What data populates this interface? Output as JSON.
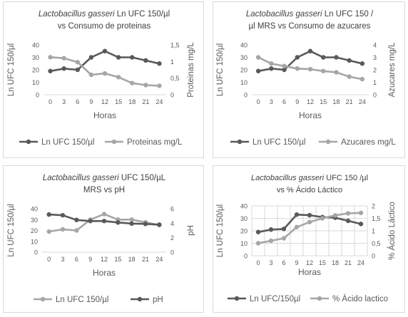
{
  "colors": {
    "dark_series": "#595959",
    "light_series": "#a6a6a6",
    "axis_text": "#595959",
    "title_text": "#404040",
    "grid": "#d9d9d9"
  },
  "chart_data": [
    {
      "type": "line",
      "title_italic": "Lactobacillus gasseri",
      "title_rest": " Ln UFC 150/µl",
      "title_line2": "vs Consumo de proteinas",
      "xlabel": "Horas",
      "ylabel_left": "Ln UFC 150/µl",
      "ylabel_right": "Proteinas mg/L",
      "x": [
        0,
        3,
        6,
        9,
        12,
        15,
        18,
        21,
        24
      ],
      "x_tick_labels": [
        "0",
        "3",
        "6",
        "9",
        "12",
        "15",
        "18",
        "21",
        "24"
      ],
      "y_left_ticks": [
        "0",
        "10",
        "20",
        "30",
        "40"
      ],
      "y_right_ticks": [
        "0",
        "0,5",
        "1",
        "1,5"
      ],
      "ylim_left": [
        0,
        40
      ],
      "ylim_right": [
        0,
        1.5
      ],
      "grid": false,
      "legend_position": "bottom",
      "series": [
        {
          "name": "Ln UFC 150/µl",
          "axis": "left",
          "color": "#595959",
          "values": [
            19,
            21,
            20,
            30,
            35,
            30,
            30,
            27.5,
            25
          ]
        },
        {
          "name": "Proteinas mg/L",
          "axis": "right",
          "color": "#a6a6a6",
          "values": [
            1.13,
            1.1,
            0.98,
            0.6,
            0.64,
            0.53,
            0.35,
            0.29,
            0.27
          ]
        }
      ]
    },
    {
      "type": "line",
      "title_italic": "Lactobacillus gasseri",
      "title_rest": " Ln UFC 150 /",
      "title_line2": "µl MRS vs Consumo de azucares",
      "xlabel": "Horas",
      "ylabel_left": "Ln UFC 150/µl",
      "ylabel_right": "Azucares mg/L",
      "x": [
        0,
        3,
        6,
        9,
        12,
        15,
        18,
        21,
        24
      ],
      "x_tick_labels": [
        "0",
        "3",
        "6",
        "9",
        "12",
        "15",
        "18",
        "21",
        "24"
      ],
      "y_left_ticks": [
        "0",
        "10",
        "20",
        "30",
        "40"
      ],
      "y_right_ticks": [
        "0",
        "1",
        "2",
        "3",
        "4"
      ],
      "ylim_left": [
        0,
        40
      ],
      "ylim_right": [
        0,
        4
      ],
      "grid": false,
      "legend_position": "bottom",
      "series": [
        {
          "name": "Ln UFC 150/µl",
          "axis": "left",
          "color": "#595959",
          "values": [
            19,
            21,
            20,
            30,
            35,
            30,
            30,
            27.5,
            25
          ]
        },
        {
          "name": "Azucares mg/L",
          "axis": "right",
          "color": "#a6a6a6",
          "values": [
            3.0,
            2.5,
            2.3,
            2.1,
            2.05,
            1.9,
            1.8,
            1.45,
            1.25
          ]
        }
      ]
    },
    {
      "type": "line",
      "title_italic": "Lactobacillus gasseri",
      "title_rest": " UFC 150/µL",
      "title_line2": "MRS vs pH",
      "xlabel": "Horas",
      "ylabel_left": "Ln UFC 150/µl",
      "ylabel_right": "pH",
      "x": [
        0,
        3,
        6,
        9,
        12,
        15,
        18,
        21,
        24
      ],
      "x_tick_labels": [
        "0",
        "3",
        "6",
        "9",
        "12",
        "15",
        "18",
        "21",
        "24"
      ],
      "y_left_ticks": [
        "0",
        "10",
        "20",
        "30",
        "40"
      ],
      "y_right_ticks": [
        "0",
        "2",
        "4",
        "6"
      ],
      "ylim_left": [
        0,
        40
      ],
      "ylim_right": [
        0,
        6
      ],
      "grid": false,
      "legend_position": "bottom",
      "series": [
        {
          "name": "Ln UFC 150/µl",
          "axis": "left",
          "color": "#a6a6a6",
          "values": [
            19,
            21,
            20,
            30,
            35,
            30,
            30,
            27.5,
            25
          ]
        },
        {
          "name": "pH",
          "axis": "right",
          "color": "#595959",
          "values": [
            5.2,
            5.1,
            4.45,
            4.3,
            4.3,
            4.1,
            3.95,
            3.9,
            3.8
          ]
        }
      ]
    },
    {
      "type": "line",
      "title_italic": "Lactobacillus gasseri",
      "title_rest": " UFC 150 /µl",
      "title_line2": "vs % Ácido Láctico",
      "xlabel": "Horas",
      "ylabel_left": "Ln UFC 150/µl",
      "ylabel_right": "% Ácido Láctico",
      "x": [
        0,
        3,
        6,
        9,
        12,
        15,
        18,
        21,
        24
      ],
      "x_tick_labels": [
        "0",
        "3",
        "6",
        "9",
        "12",
        "15",
        "18",
        "21",
        "24"
      ],
      "y_left_ticks": [
        "0",
        "10",
        "20",
        "30",
        "40"
      ],
      "y_right_ticks": [
        "0",
        "0,5",
        "1",
        "1,5",
        "2"
      ],
      "ylim_left": [
        0,
        40
      ],
      "ylim_right": [
        0,
        2
      ],
      "grid": true,
      "legend_position": "bottom",
      "series": [
        {
          "name": "Ln UFC/150µl",
          "axis": "left",
          "color": "#595959",
          "values": [
            19,
            21,
            21.5,
            33,
            32.5,
            31,
            30.5,
            28,
            25.5
          ]
        },
        {
          "name": "% Ácido lactico",
          "axis": "right",
          "color": "#a6a6a6",
          "values": [
            0.5,
            0.6,
            0.7,
            1.15,
            1.35,
            1.5,
            1.62,
            1.7,
            1.72
          ]
        }
      ]
    }
  ]
}
